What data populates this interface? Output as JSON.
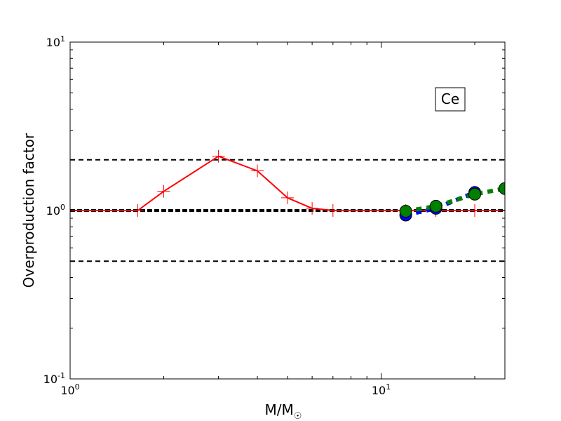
{
  "chart_data": {
    "type": "line",
    "xscale": "log",
    "yscale": "log",
    "xlim": [
      1,
      25
    ],
    "ylim": [
      0.1,
      10
    ],
    "xlabel": {
      "base": "M/M",
      "sub": "☉"
    },
    "ylabel": "Overproduction factor",
    "x_ticks": [
      {
        "value": 1,
        "base": "10",
        "exp": "0"
      },
      {
        "value": 10,
        "base": "10",
        "exp": "1"
      }
    ],
    "y_ticks": [
      {
        "value": 0.1,
        "base": "10",
        "exp": "-1"
      },
      {
        "value": 1,
        "base": "10",
        "exp": "0"
      },
      {
        "value": 10,
        "base": "10",
        "exp": "1"
      }
    ],
    "annotation": "Ce",
    "reference_lines": [
      {
        "y": 2.0,
        "style": "dashed",
        "color": "#000000",
        "width": 2
      },
      {
        "y": 1.0,
        "style": "dashed",
        "color": "#000000",
        "width": 4
      },
      {
        "y": 0.5,
        "style": "dashed",
        "color": "#000000",
        "width": 2
      }
    ],
    "series": [
      {
        "style": "solid",
        "color": "#ff0000",
        "marker": "plus",
        "x": [
          1.0,
          1.65,
          2.0,
          3.0,
          4.0,
          5.0,
          6.0,
          7.0,
          12.0,
          15.0,
          20.0,
          25.0
        ],
        "y": [
          1.0,
          1.0,
          1.3,
          2.1,
          1.72,
          1.19,
          1.03,
          1.0,
          1.0,
          1.0,
          1.0,
          1.0
        ]
      },
      {
        "style": "dashed",
        "color": "#0000ff",
        "marker": "circle",
        "marker_color": "#0000ff",
        "x": [
          12.0,
          15.0,
          20.0
        ],
        "y": [
          0.94,
          1.03,
          1.28
        ]
      },
      {
        "style": "dashed",
        "color": "#008000",
        "marker": "circle",
        "marker_color": "#008000",
        "x": [
          12.0,
          15.0,
          20.0,
          25.0
        ],
        "y": [
          0.99,
          1.06,
          1.25,
          1.35
        ]
      }
    ]
  }
}
